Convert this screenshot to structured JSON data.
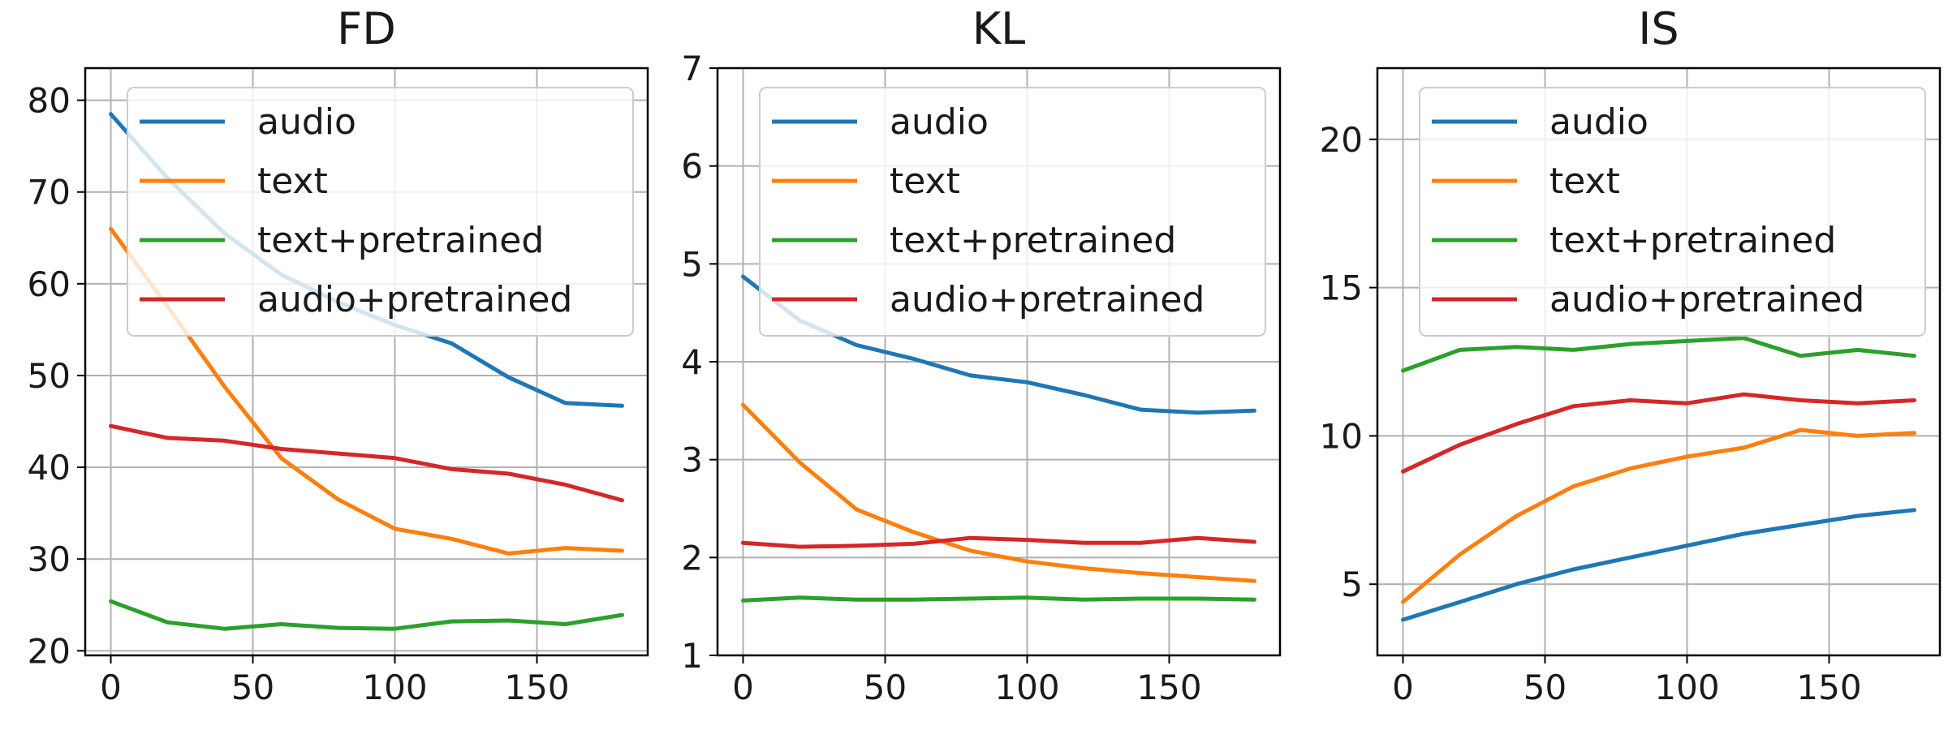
{
  "chart_data": [
    {
      "type": "line",
      "title": "FD",
      "xlabel": "",
      "ylabel": "",
      "x": [
        0,
        20,
        40,
        60,
        80,
        100,
        120,
        140,
        160,
        180
      ],
      "xlim": [
        -9,
        189
      ],
      "ylim": [
        19.5,
        83.5
      ],
      "xticks": [
        0,
        50,
        100,
        150
      ],
      "yticks": [
        20,
        30,
        40,
        50,
        60,
        70,
        80
      ],
      "grid": true,
      "legend": "top-right",
      "series": [
        {
          "name": "audio",
          "color": "#1f77b4",
          "values": [
            78.5,
            71.5,
            65.5,
            61.0,
            58.0,
            55.5,
            53.5,
            49.8,
            47.0,
            46.7
          ]
        },
        {
          "name": "text",
          "color": "#ff7f0e",
          "values": [
            66.0,
            57.5,
            48.8,
            41.0,
            36.5,
            33.3,
            32.2,
            30.6,
            31.2,
            30.9
          ]
        },
        {
          "name": "text+pretrained",
          "color": "#2ca02c",
          "values": [
            25.4,
            23.1,
            22.4,
            22.9,
            22.5,
            22.4,
            23.2,
            23.3,
            22.9,
            23.9
          ]
        },
        {
          "name": "audio+pretrained",
          "color": "#d62728",
          "values": [
            44.5,
            43.2,
            42.9,
            42.0,
            41.5,
            41.0,
            39.8,
            39.3,
            38.1,
            36.4
          ]
        }
      ]
    },
    {
      "type": "line",
      "title": "KL",
      "xlabel": "",
      "ylabel": "",
      "x": [
        0,
        20,
        40,
        60,
        80,
        100,
        120,
        140,
        160,
        180
      ],
      "xlim": [
        -9,
        189
      ],
      "ylim": [
        1,
        7
      ],
      "xticks": [
        0,
        50,
        100,
        150
      ],
      "yticks": [
        1,
        2,
        3,
        4,
        5,
        6,
        7
      ],
      "grid": true,
      "legend": "top-right",
      "series": [
        {
          "name": "audio",
          "color": "#1f77b4",
          "values": [
            4.87,
            4.42,
            4.17,
            4.03,
            3.86,
            3.79,
            3.66,
            3.51,
            3.48,
            3.5
          ]
        },
        {
          "name": "text",
          "color": "#ff7f0e",
          "values": [
            3.56,
            2.97,
            2.49,
            2.26,
            2.07,
            1.96,
            1.89,
            1.84,
            1.8,
            1.76
          ]
        },
        {
          "name": "text+pretrained",
          "color": "#2ca02c",
          "values": [
            1.56,
            1.59,
            1.57,
            1.57,
            1.58,
            1.59,
            1.57,
            1.58,
            1.58,
            1.57
          ]
        },
        {
          "name": "audio+pretrained",
          "color": "#d62728",
          "values": [
            2.15,
            2.11,
            2.12,
            2.14,
            2.2,
            2.18,
            2.15,
            2.15,
            2.2,
            2.16
          ]
        }
      ]
    },
    {
      "type": "line",
      "title": "IS",
      "xlabel": "",
      "ylabel": "",
      "x": [
        0,
        20,
        40,
        60,
        80,
        100,
        120,
        140,
        160,
        180
      ],
      "xlim": [
        -9,
        189
      ],
      "ylim": [
        2.6,
        22.4
      ],
      "xticks": [
        0,
        50,
        100,
        150
      ],
      "yticks": [
        5,
        10,
        15,
        20
      ],
      "grid": true,
      "legend": "top-right",
      "series": [
        {
          "name": "audio",
          "color": "#1f77b4",
          "values": [
            3.8,
            4.4,
            5.0,
            5.5,
            5.9,
            6.3,
            6.7,
            7.0,
            7.3,
            7.5
          ]
        },
        {
          "name": "text",
          "color": "#ff7f0e",
          "values": [
            4.4,
            6.0,
            7.3,
            8.3,
            8.9,
            9.3,
            9.6,
            10.2,
            10.0,
            10.1
          ]
        },
        {
          "name": "text+pretrained",
          "color": "#2ca02c",
          "values": [
            12.2,
            12.9,
            13.0,
            12.9,
            13.1,
            13.2,
            13.3,
            12.7,
            12.9,
            12.7
          ]
        },
        {
          "name": "audio+pretrained",
          "color": "#d62728",
          "values": [
            8.8,
            9.7,
            10.4,
            11.0,
            11.2,
            11.1,
            11.4,
            11.2,
            11.1,
            11.2
          ]
        }
      ]
    }
  ]
}
